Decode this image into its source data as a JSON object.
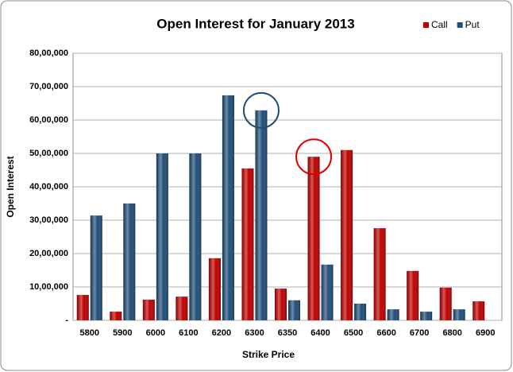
{
  "chart_data": {
    "type": "bar",
    "title": "Open Interest for January 2013",
    "x_label": "Strike Price",
    "y_label": "Open Interest",
    "categories": [
      "5800",
      "5900",
      "6000",
      "6100",
      "6200",
      "6300",
      "6350",
      "6400",
      "6500",
      "6600",
      "6700",
      "6800",
      "6900"
    ],
    "series": [
      {
        "name": "Call",
        "color": "#c00000",
        "values": [
          760000,
          260000,
          620000,
          710000,
          1860000,
          4550000,
          950000,
          4900000,
          5100000,
          2760000,
          1480000,
          980000,
          570000
        ]
      },
      {
        "name": "Put",
        "color": "#1f4e79",
        "values": [
          3140000,
          3500000,
          5000000,
          5000000,
          6740000,
          6290000,
          600000,
          1670000,
          500000,
          330000,
          260000,
          330000,
          null
        ]
      }
    ],
    "ylim": [
      0,
      8000000
    ],
    "yticks": [
      {
        "value": 0,
        "label": "-"
      },
      {
        "value": 1000000,
        "label": "10,00,000"
      },
      {
        "value": 2000000,
        "label": "20,00,000"
      },
      {
        "value": 3000000,
        "label": "30,00,000"
      },
      {
        "value": 4000000,
        "label": "40,00,000"
      },
      {
        "value": 5000000,
        "label": "50,00,000"
      },
      {
        "value": 6000000,
        "label": "60,00,000"
      },
      {
        "value": 7000000,
        "label": "70,00,000"
      },
      {
        "value": 8000000,
        "label": "80,00,000"
      }
    ],
    "grid": true,
    "legend": "top-right"
  }
}
